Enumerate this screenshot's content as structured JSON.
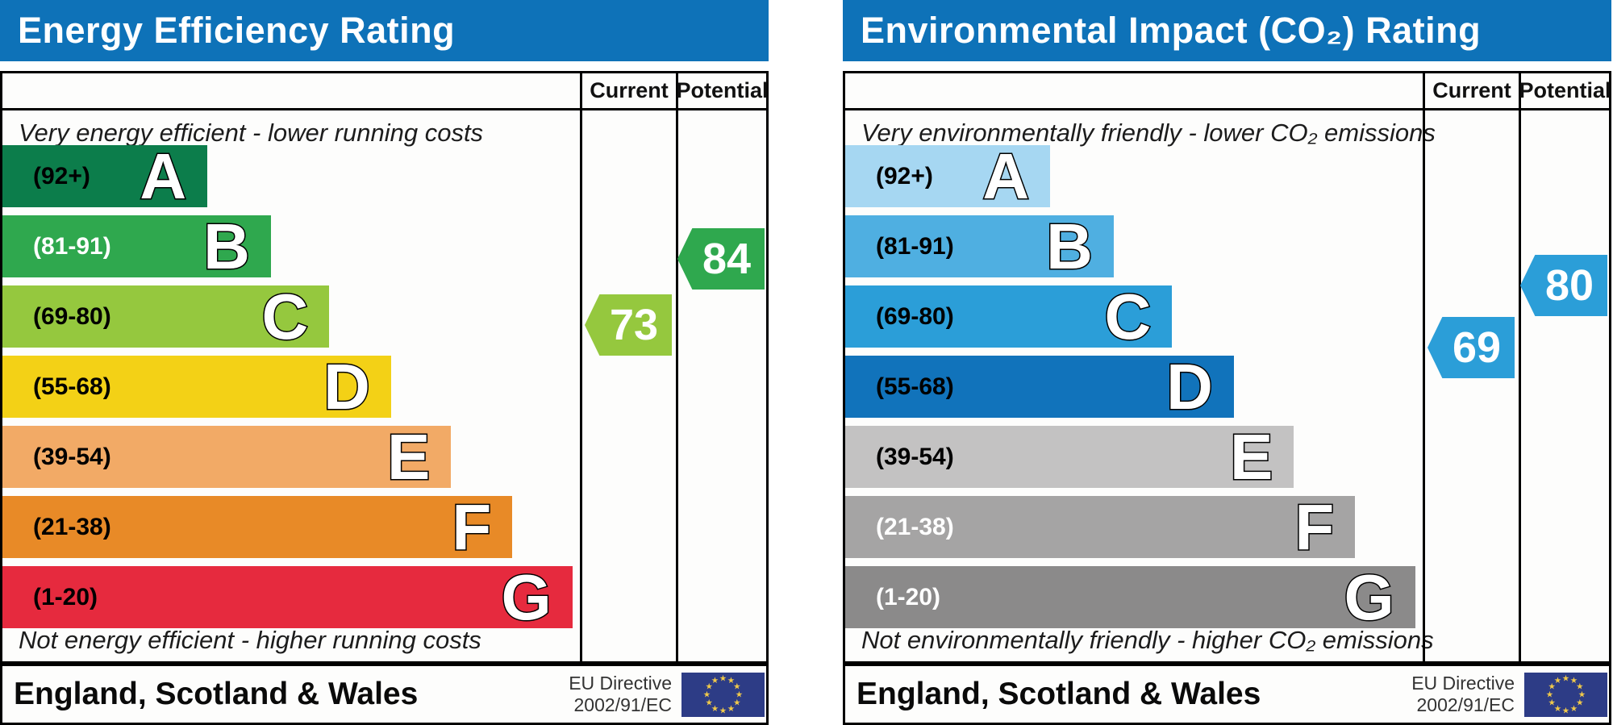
{
  "theme": {
    "header_bg": "#0e72b8",
    "border": "#000000",
    "page_bg": "#ffffff",
    "note_color": "#1c1c1c",
    "directive_color": "#333333",
    "flag_bg": "#2d3c86",
    "flag_star": "#f0c94a"
  },
  "chart_data": [
    {
      "id": "energy-efficiency",
      "type": "epc-rating-bar",
      "title": "Energy Efficiency Rating",
      "columns": [
        "Current",
        "Potential"
      ],
      "top_note": "Very energy efficient - lower running costs",
      "bottom_note": "Not energy efficient - higher running costs",
      "bands": [
        {
          "letter": "A",
          "label": "(92+)",
          "min": 92,
          "max": 100,
          "color": "#0c7d4b",
          "label_color": "#000000",
          "width_pct": 35.5
        },
        {
          "letter": "B",
          "label": "(81-91)",
          "min": 81,
          "max": 91,
          "color": "#2fa84e",
          "label_color": "#ffffff",
          "width_pct": 46.5
        },
        {
          "letter": "C",
          "label": "(69-80)",
          "min": 69,
          "max": 80,
          "color": "#95c83e",
          "label_color": "#000000",
          "width_pct": 56.6
        },
        {
          "letter": "D",
          "label": "(55-68)",
          "min": 55,
          "max": 68,
          "color": "#f3d116",
          "label_color": "#000000",
          "width_pct": 67.3
        },
        {
          "letter": "E",
          "label": "(39-54)",
          "min": 39,
          "max": 54,
          "color": "#f2aa66",
          "label_color": "#000000",
          "width_pct": 77.7
        },
        {
          "letter": "F",
          "label": "(21-38)",
          "min": 21,
          "max": 38,
          "color": "#e88a27",
          "label_color": "#000000",
          "width_pct": 88.3
        },
        {
          "letter": "G",
          "label": "(1-20)",
          "min": 1,
          "max": 20,
          "color": "#e62a3e",
          "label_color": "#000000",
          "width_pct": 98.7
        }
      ],
      "current": {
        "value": 73,
        "band": "C",
        "color": "#95c83e"
      },
      "potential": {
        "value": 84,
        "band": "B",
        "color": "#2fa84e"
      },
      "footer_region": "England, Scotland & Wales",
      "footer_directive": [
        "EU Directive",
        "2002/91/EC"
      ]
    },
    {
      "id": "environmental-impact",
      "type": "epc-rating-bar",
      "title": "Environmental Impact (CO₂) Rating",
      "columns": [
        "Current",
        "Potential"
      ],
      "top_note": "Very environmentally friendly - lower CO₂ emissions",
      "bottom_note": "Not environmentally friendly - higher CO₂ emissions",
      "bands": [
        {
          "letter": "A",
          "label": "(92+)",
          "min": 92,
          "max": 100,
          "color": "#a6d7f2",
          "label_color": "#000000",
          "width_pct": 35.5
        },
        {
          "letter": "B",
          "label": "(81-91)",
          "min": 81,
          "max": 91,
          "color": "#4fafe1",
          "label_color": "#000000",
          "width_pct": 46.5
        },
        {
          "letter": "C",
          "label": "(69-80)",
          "min": 69,
          "max": 80,
          "color": "#2b9ed8",
          "label_color": "#000000",
          "width_pct": 56.6
        },
        {
          "letter": "D",
          "label": "(55-68)",
          "min": 55,
          "max": 68,
          "color": "#1173bb",
          "label_color": "#000000",
          "width_pct": 67.3
        },
        {
          "letter": "E",
          "label": "(39-54)",
          "min": 39,
          "max": 54,
          "color": "#c3c2c2",
          "label_color": "#000000",
          "width_pct": 77.7
        },
        {
          "letter": "F",
          "label": "(21-38)",
          "min": 21,
          "max": 38,
          "color": "#a5a4a4",
          "label_color": "#ffffff",
          "width_pct": 88.3
        },
        {
          "letter": "G",
          "label": "(1-20)",
          "min": 1,
          "max": 20,
          "color": "#8b8a8a",
          "label_color": "#ffffff",
          "width_pct": 98.7
        }
      ],
      "current": {
        "value": 69,
        "band": "C",
        "color": "#2b9ed8"
      },
      "potential": {
        "value": 80,
        "band": "C",
        "color": "#2b9ed8"
      },
      "footer_region": "England, Scotland & Wales",
      "footer_directive": [
        "EU Directive",
        "2002/91/EC"
      ]
    }
  ]
}
